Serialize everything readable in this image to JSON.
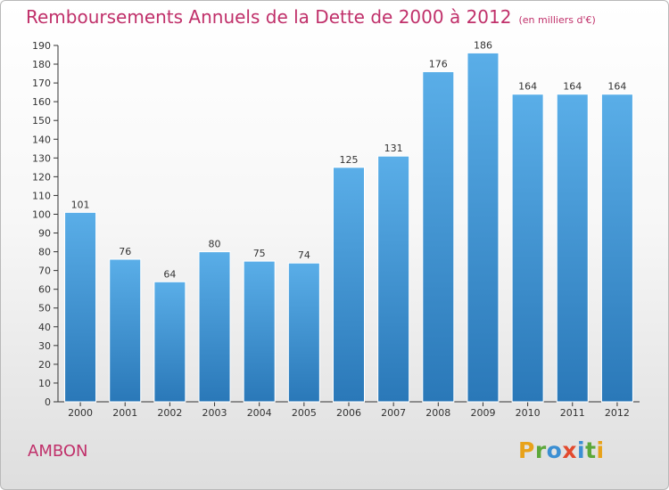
{
  "page": {
    "town": "AMBON",
    "logo_letters": [
      "P",
      "r",
      "o",
      "x",
      "i",
      "t",
      "i"
    ],
    "logo_colors": [
      "#e8a21a",
      "#5ca83a",
      "#3b8fd3",
      "#e24a2e",
      "#3b8fd3",
      "#5ca83a",
      "#e8a21a"
    ]
  },
  "chart_data": {
    "type": "bar",
    "title": "Remboursements Annuels de la Dette de 2000 à 2012",
    "subtitle": "(en milliers d'€)",
    "xlabel": "",
    "ylabel": "",
    "categories": [
      "2000",
      "2001",
      "2002",
      "2003",
      "2004",
      "2005",
      "2006",
      "2007",
      "2008",
      "2009",
      "2010",
      "2011",
      "2012"
    ],
    "values": [
      101,
      76,
      64,
      80,
      75,
      74,
      125,
      131,
      176,
      186,
      164,
      164,
      164
    ],
    "ylim": [
      0,
      190
    ],
    "ytick_step": 10,
    "grid": false,
    "bar_color_top": "#5aaee8",
    "bar_color_bottom": "#2a78b8"
  }
}
